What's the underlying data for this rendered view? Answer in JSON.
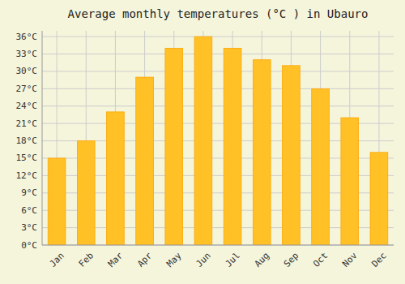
{
  "chart_data": {
    "type": "bar",
    "title": "Average monthly temperatures (°C ) in Ubauro",
    "categories": [
      "Jan",
      "Feb",
      "Mar",
      "Apr",
      "May",
      "Jun",
      "Jul",
      "Aug",
      "Sep",
      "Oct",
      "Nov",
      "Dec"
    ],
    "values": [
      15,
      18,
      23,
      29,
      34,
      36,
      34,
      32,
      31,
      27,
      22,
      16
    ],
    "color": "#FFC125",
    "ylim": [
      0,
      37
    ],
    "yticks": [
      {
        "value": 0,
        "label": "0°C"
      },
      {
        "value": 3,
        "label": "3°C"
      },
      {
        "value": 6,
        "label": "6°C"
      },
      {
        "value": 9,
        "label": "9°C"
      },
      {
        "value": 12,
        "label": "12°C"
      },
      {
        "value": 15,
        "label": "15°C"
      },
      {
        "value": 18,
        "label": "18°C"
      },
      {
        "value": 21,
        "label": "21°C"
      },
      {
        "value": 24,
        "label": "24°C"
      },
      {
        "value": 27,
        "label": "27°C"
      },
      {
        "value": 30,
        "label": "30°C"
      },
      {
        "value": 33,
        "label": "33°C"
      },
      {
        "value": 36,
        "label": "36°C"
      }
    ],
    "grid": true
  }
}
